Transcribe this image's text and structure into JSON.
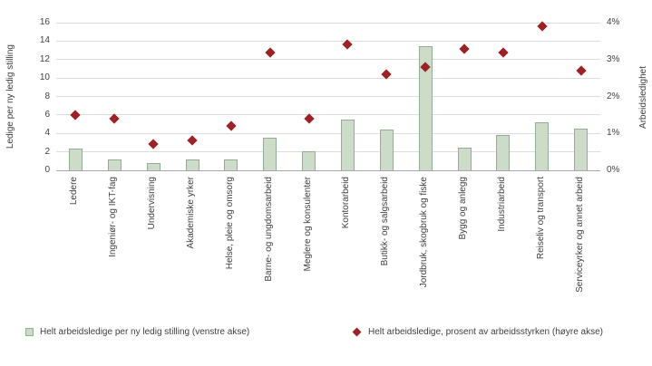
{
  "chart_data": {
    "type": "combo-bar-scatter",
    "categories": [
      "Ledere",
      "Ingeniør- og IKT-fag",
      "Undervisning",
      "Akademiske yrker",
      "Helse, pleie og omsorg",
      "Barne- og ungdomsarbeid",
      "Meglere og konsulenter",
      "Kontorarbeid",
      "Butikk- og salgsarbeid",
      "Jordbruk, skogbruk og fiske",
      "Bygg og anlegg",
      "Industriarbeid",
      "Reiseliv og transport",
      "Serviceyrker og annet arbeid"
    ],
    "series": [
      {
        "name": "Helt arbeidsledige per ny ledig stilling (venstre akse)",
        "type": "bar",
        "axis": "left",
        "values": [
          2.4,
          1.2,
          0.8,
          1.2,
          1.2,
          3.5,
          2.1,
          5.5,
          4.4,
          13.4,
          2.5,
          3.8,
          5.2,
          4.5
        ]
      },
      {
        "name": "Helt arbeidsledige, prosent av arbeidsstyrken (høyre akse)",
        "type": "scatter-diamond",
        "axis": "right",
        "values": [
          1.5,
          1.4,
          0.7,
          0.8,
          1.2,
          3.2,
          1.4,
          3.4,
          2.6,
          2.8,
          3.3,
          3.2,
          3.9,
          2.7
        ]
      }
    ],
    "left_axis": {
      "label": "Ledige per ny ledig stilling",
      "min": 0,
      "max": 16,
      "step": 2
    },
    "right_axis": {
      "label": "Arbeidsledighet",
      "min": 0,
      "max": 4,
      "step": 1,
      "suffix": "%"
    },
    "grid": "horizontal",
    "legend_position": "bottom",
    "colors": {
      "bar_fill": "#ccdcc8",
      "bar_border": "#94ac94",
      "diamond": "#9b2226",
      "grid": "#dcdcdc",
      "axis": "#a8a8a8",
      "text": "#404040"
    }
  },
  "legend": {
    "items": [
      {
        "label": "Helt arbeidsledige per ny ledig stilling (venstre akse)",
        "marker": "square"
      },
      {
        "label": "Helt arbeidsledige, prosent av arbeidsstyrken (høyre akse)",
        "marker": "diamond"
      }
    ]
  }
}
